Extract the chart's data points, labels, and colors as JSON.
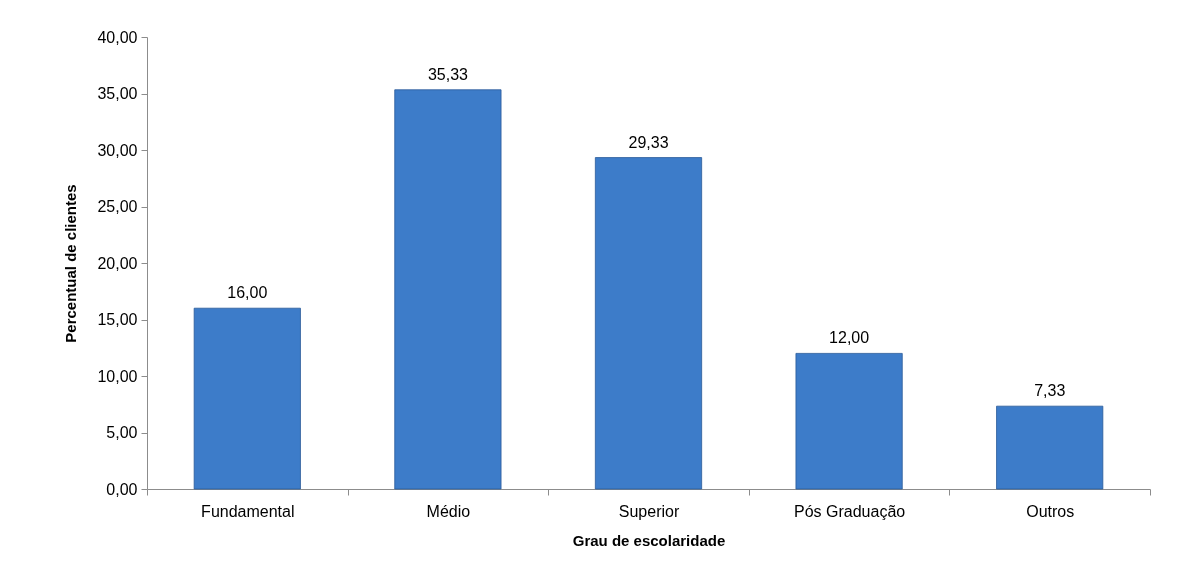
{
  "chart_data": {
    "type": "bar",
    "xlabel": "Grau de escolaridade",
    "ylabel": "Percentual de clientes",
    "categories": [
      "Fundamental",
      "Médio",
      "Superior",
      "Pós Graduação",
      "Outros"
    ],
    "values": [
      16.0,
      35.33,
      29.33,
      12.0,
      7.33
    ],
    "value_labels": [
      "16,00",
      "35,33",
      "29,33",
      "12,00",
      "7,33"
    ],
    "color": "#3d7cc9",
    "ylim": [
      0,
      40
    ],
    "yticks": [
      {
        "value": 0,
        "label": "0,00"
      },
      {
        "value": 5,
        "label": "5,00"
      },
      {
        "value": 10,
        "label": "10,00"
      },
      {
        "value": 15,
        "label": "15,00"
      },
      {
        "value": 20,
        "label": "20,00"
      },
      {
        "value": 25,
        "label": "25,00"
      },
      {
        "value": 30,
        "label": "30,00"
      },
      {
        "value": 35,
        "label": "35,00"
      },
      {
        "value": 40,
        "label": "40,00"
      }
    ]
  }
}
